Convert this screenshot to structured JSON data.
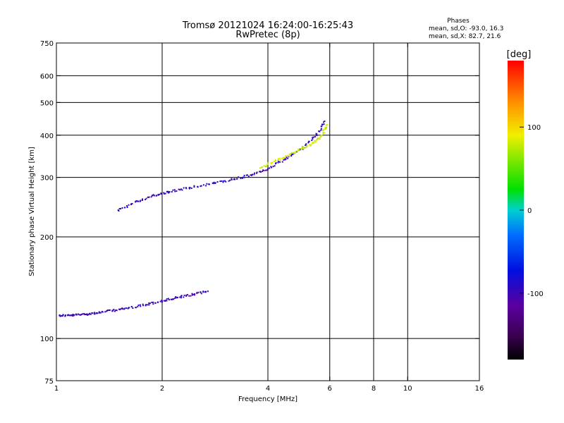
{
  "title": "Tromsø 20121024 16:24:00-16:25:43",
  "subtitle": "RwPretec (8p)",
  "phases_block": {
    "heading": "Phases",
    "line_o": "mean, sd,O: -93.0, 16.3",
    "line_x": "mean, sd,X:  82.7, 21.6"
  },
  "colors": {
    "grid": "#000000",
    "plot_bg": "#ffffff"
  },
  "chart_data": {
    "type": "scatter",
    "title": "Tromsø 20121024 16:24:00-16:25:43",
    "subtitle": "RwPretec (8p)",
    "xlabel": "Frequency [MHz]",
    "ylabel": "Stationary phase Virtual Height [km]",
    "x_scale": "log",
    "y_scale": "log",
    "xlim": [
      1,
      16
    ],
    "ylim": [
      75,
      750
    ],
    "x_ticks": [
      1,
      2,
      4,
      6,
      8,
      10,
      16
    ],
    "x_tick_labels": [
      "1",
      "2",
      "4",
      "6",
      "8",
      "10",
      "16"
    ],
    "x_gridlines": [
      2,
      4,
      6,
      8,
      10
    ],
    "y_ticks": [
      75,
      100,
      200,
      300,
      400,
      500,
      600,
      750
    ],
    "y_tick_labels": [
      "75",
      "100",
      "200",
      "300",
      "400",
      "500",
      "600",
      "750"
    ],
    "y_gridlines": [
      100,
      200,
      300,
      400,
      500,
      600
    ],
    "grid": true,
    "colorbar": {
      "label": "[deg]",
      "ticks": [
        100,
        0,
        -100
      ],
      "tick_labels": [
        "100",
        "0",
        "-100"
      ],
      "range": [
        -180,
        180
      ],
      "colormap": "rainbow (black-purple-blue-cyan-green-yellow-orange-red)"
    },
    "series": [
      {
        "description": "E-region trace, lower edge",
        "color_value": -100,
        "points": [
          [
            1.02,
            117
          ],
          [
            1.1,
            117
          ],
          [
            1.2,
            118
          ],
          [
            1.3,
            119
          ],
          [
            1.45,
            121
          ],
          [
            1.6,
            123
          ],
          [
            1.8,
            126
          ],
          [
            2.0,
            129
          ],
          [
            2.2,
            132
          ],
          [
            2.45,
            135
          ],
          [
            2.7,
            138
          ]
        ]
      },
      {
        "description": "F-region trace, lower edge (O-mode)",
        "color_value": -95,
        "points": [
          [
            1.5,
            240
          ],
          [
            1.7,
            255
          ],
          [
            1.9,
            265
          ],
          [
            2.1,
            272
          ],
          [
            2.4,
            280
          ],
          [
            2.8,
            288
          ],
          [
            3.2,
            296
          ],
          [
            3.6,
            305
          ],
          [
            4.0,
            318
          ],
          [
            4.5,
            340
          ],
          [
            5.0,
            365
          ],
          [
            5.5,
            400
          ],
          [
            5.8,
            440
          ]
        ]
      },
      {
        "description": "F-region X-mode trace",
        "color_value": 82,
        "points": [
          [
            3.8,
            320
          ],
          [
            4.2,
            335
          ],
          [
            4.6,
            350
          ],
          [
            5.0,
            365
          ],
          [
            5.4,
            380
          ],
          [
            5.7,
            400
          ],
          [
            5.9,
            430
          ]
        ]
      }
    ],
    "phase_stats": {
      "O": {
        "mean": -93.0,
        "sd": 16.3
      },
      "X": {
        "mean": 82.7,
        "sd": 21.6
      }
    }
  }
}
